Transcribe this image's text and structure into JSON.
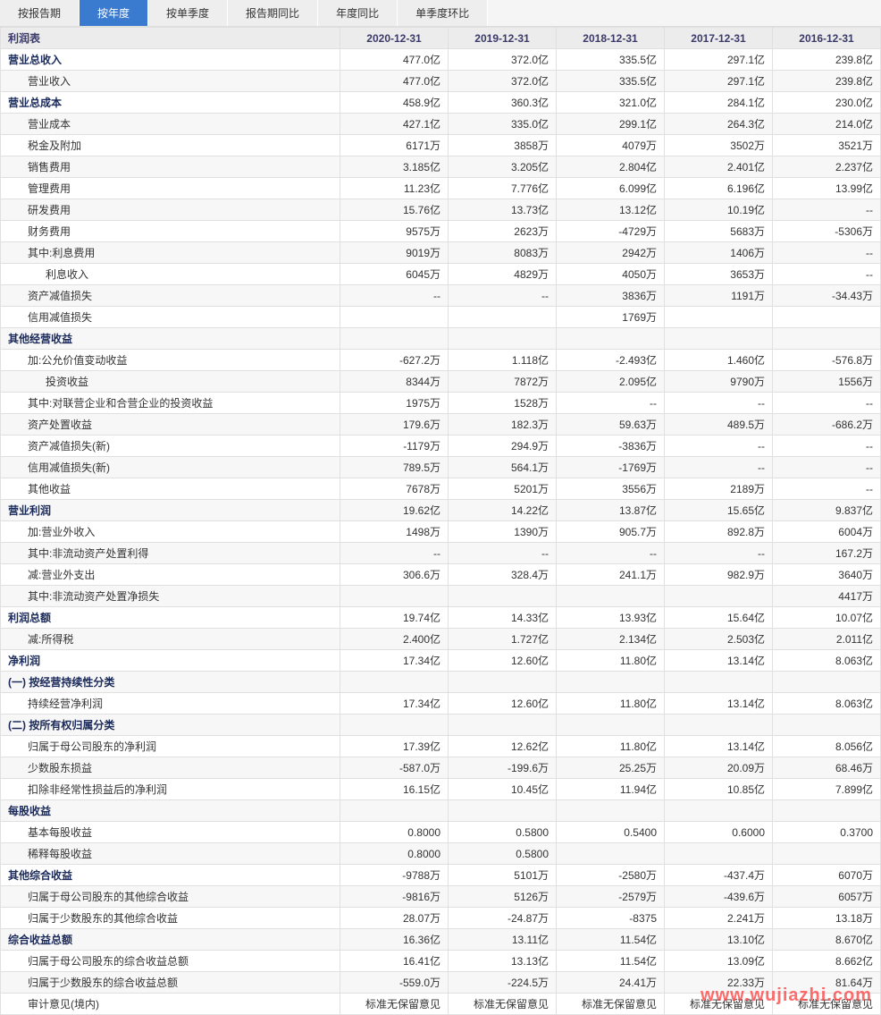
{
  "tabs": [
    {
      "label": "按报告期",
      "active": false
    },
    {
      "label": "按年度",
      "active": true
    },
    {
      "label": "按单季度",
      "active": false
    },
    {
      "label": "报告期同比",
      "active": false
    },
    {
      "label": "年度同比",
      "active": false
    },
    {
      "label": "单季度环比",
      "active": false
    }
  ],
  "header": {
    "title": "利润表",
    "cols": [
      "2020-12-31",
      "2019-12-31",
      "2018-12-31",
      "2017-12-31",
      "2016-12-31"
    ]
  },
  "rows": [
    {
      "label": "营业总收入",
      "indent": 0,
      "section": true,
      "v": [
        "477.0亿",
        "372.0亿",
        "335.5亿",
        "297.1亿",
        "239.8亿"
      ]
    },
    {
      "label": "营业收入",
      "indent": 1,
      "v": [
        "477.0亿",
        "372.0亿",
        "335.5亿",
        "297.1亿",
        "239.8亿"
      ]
    },
    {
      "label": "营业总成本",
      "indent": 0,
      "section": true,
      "v": [
        "458.9亿",
        "360.3亿",
        "321.0亿",
        "284.1亿",
        "230.0亿"
      ]
    },
    {
      "label": "营业成本",
      "indent": 1,
      "v": [
        "427.1亿",
        "335.0亿",
        "299.1亿",
        "264.3亿",
        "214.0亿"
      ]
    },
    {
      "label": "税金及附加",
      "indent": 1,
      "v": [
        "6171万",
        "3858万",
        "4079万",
        "3502万",
        "3521万"
      ]
    },
    {
      "label": "销售费用",
      "indent": 1,
      "v": [
        "3.185亿",
        "3.205亿",
        "2.804亿",
        "2.401亿",
        "2.237亿"
      ]
    },
    {
      "label": "管理费用",
      "indent": 1,
      "v": [
        "11.23亿",
        "7.776亿",
        "6.099亿",
        "6.196亿",
        "13.99亿"
      ]
    },
    {
      "label": "研发费用",
      "indent": 1,
      "v": [
        "15.76亿",
        "13.73亿",
        "13.12亿",
        "10.19亿",
        "--"
      ]
    },
    {
      "label": "财务费用",
      "indent": 1,
      "v": [
        "9575万",
        "2623万",
        "-4729万",
        "5683万",
        "-5306万"
      ]
    },
    {
      "label": "其中:利息费用",
      "indent": 1,
      "v": [
        "9019万",
        "8083万",
        "2942万",
        "1406万",
        "--"
      ]
    },
    {
      "label": "利息收入",
      "indent": 2,
      "v": [
        "6045万",
        "4829万",
        "4050万",
        "3653万",
        "--"
      ]
    },
    {
      "label": "资产减值损失",
      "indent": 1,
      "v": [
        "--",
        "--",
        "3836万",
        "1191万",
        "-34.43万"
      ]
    },
    {
      "label": "信用减值损失",
      "indent": 1,
      "v": [
        "",
        "",
        "1769万",
        "",
        ""
      ]
    },
    {
      "label": "其他经营收益",
      "indent": 0,
      "section": true,
      "v": [
        "",
        "",
        "",
        "",
        ""
      ]
    },
    {
      "label": "加:公允价值变动收益",
      "indent": 1,
      "v": [
        "-627.2万",
        "1.118亿",
        "-2.493亿",
        "1.460亿",
        "-576.8万"
      ]
    },
    {
      "label": "投资收益",
      "indent": 2,
      "v": [
        "8344万",
        "7872万",
        "2.095亿",
        "9790万",
        "1556万"
      ]
    },
    {
      "label": "其中:对联营企业和合营企业的投资收益",
      "indent": 1,
      "v": [
        "1975万",
        "1528万",
        "--",
        "--",
        "--"
      ]
    },
    {
      "label": "资产处置收益",
      "indent": 1,
      "v": [
        "179.6万",
        "182.3万",
        "59.63万",
        "489.5万",
        "-686.2万"
      ]
    },
    {
      "label": "资产减值损失(新)",
      "indent": 1,
      "v": [
        "-1179万",
        "294.9万",
        "-3836万",
        "--",
        "--"
      ]
    },
    {
      "label": "信用减值损失(新)",
      "indent": 1,
      "v": [
        "789.5万",
        "564.1万",
        "-1769万",
        "--",
        "--"
      ]
    },
    {
      "label": "其他收益",
      "indent": 1,
      "v": [
        "7678万",
        "5201万",
        "3556万",
        "2189万",
        "--"
      ]
    },
    {
      "label": "营业利润",
      "indent": 0,
      "section": true,
      "v": [
        "19.62亿",
        "14.22亿",
        "13.87亿",
        "15.65亿",
        "9.837亿"
      ]
    },
    {
      "label": "加:营业外收入",
      "indent": 1,
      "v": [
        "1498万",
        "1390万",
        "905.7万",
        "892.8万",
        "6004万"
      ]
    },
    {
      "label": "其中:非流动资产处置利得",
      "indent": 1,
      "v": [
        "--",
        "--",
        "--",
        "--",
        "167.2万"
      ]
    },
    {
      "label": "减:营业外支出",
      "indent": 1,
      "v": [
        "306.6万",
        "328.4万",
        "241.1万",
        "982.9万",
        "3640万"
      ]
    },
    {
      "label": "其中:非流动资产处置净损失",
      "indent": 1,
      "v": [
        "",
        "",
        "",
        "",
        "4417万"
      ]
    },
    {
      "label": "利润总额",
      "indent": 0,
      "section": true,
      "v": [
        "19.74亿",
        "14.33亿",
        "13.93亿",
        "15.64亿",
        "10.07亿"
      ]
    },
    {
      "label": "减:所得税",
      "indent": 1,
      "v": [
        "2.400亿",
        "1.727亿",
        "2.134亿",
        "2.503亿",
        "2.011亿"
      ]
    },
    {
      "label": "净利润",
      "indent": 0,
      "section": true,
      "v": [
        "17.34亿",
        "12.60亿",
        "11.80亿",
        "13.14亿",
        "8.063亿"
      ]
    },
    {
      "label": "(一) 按经营持续性分类",
      "indent": 0,
      "section": true,
      "v": [
        "",
        "",
        "",
        "",
        ""
      ]
    },
    {
      "label": "持续经营净利润",
      "indent": 1,
      "v": [
        "17.34亿",
        "12.60亿",
        "11.80亿",
        "13.14亿",
        "8.063亿"
      ]
    },
    {
      "label": "(二) 按所有权归属分类",
      "indent": 0,
      "section": true,
      "v": [
        "",
        "",
        "",
        "",
        ""
      ]
    },
    {
      "label": "归属于母公司股东的净利润",
      "indent": 1,
      "v": [
        "17.39亿",
        "12.62亿",
        "11.80亿",
        "13.14亿",
        "8.056亿"
      ]
    },
    {
      "label": "少数股东损益",
      "indent": 1,
      "v": [
        "-587.0万",
        "-199.6万",
        "25.25万",
        "20.09万",
        "68.46万"
      ]
    },
    {
      "label": "扣除非经常性损益后的净利润",
      "indent": 1,
      "v": [
        "16.15亿",
        "10.45亿",
        "11.94亿",
        "10.85亿",
        "7.899亿"
      ]
    },
    {
      "label": "每股收益",
      "indent": 0,
      "section": true,
      "v": [
        "",
        "",
        "",
        "",
        ""
      ]
    },
    {
      "label": "基本每股收益",
      "indent": 1,
      "v": [
        "0.8000",
        "0.5800",
        "0.5400",
        "0.6000",
        "0.3700"
      ]
    },
    {
      "label": "稀释每股收益",
      "indent": 1,
      "v": [
        "0.8000",
        "0.5800",
        "",
        "",
        ""
      ]
    },
    {
      "label": "其他综合收益",
      "indent": 0,
      "section": true,
      "v": [
        "-9788万",
        "5101万",
        "-2580万",
        "-437.4万",
        "6070万"
      ]
    },
    {
      "label": "归属于母公司股东的其他综合收益",
      "indent": 1,
      "v": [
        "-9816万",
        "5126万",
        "-2579万",
        "-439.6万",
        "6057万"
      ]
    },
    {
      "label": "归属于少数股东的其他综合收益",
      "indent": 1,
      "v": [
        "28.07万",
        "-24.87万",
        "-8375",
        "2.241万",
        "13.18万"
      ]
    },
    {
      "label": "综合收益总额",
      "indent": 0,
      "section": true,
      "v": [
        "16.36亿",
        "13.11亿",
        "11.54亿",
        "13.10亿",
        "8.670亿"
      ]
    },
    {
      "label": "归属于母公司股东的综合收益总额",
      "indent": 1,
      "v": [
        "16.41亿",
        "13.13亿",
        "11.54亿",
        "13.09亿",
        "8.662亿"
      ]
    },
    {
      "label": "归属于少数股东的综合收益总额",
      "indent": 1,
      "v": [
        "-559.0万",
        "-224.5万",
        "24.41万",
        "22.33万",
        "81.64万"
      ]
    },
    {
      "label": "审计意见(境内)",
      "indent": 1,
      "v": [
        "标准无保留意见",
        "标准无保留意见",
        "标准无保留意见",
        "标准无保留意见",
        "标准无保留意见"
      ]
    }
  ],
  "watermark": "www.wujiazhi.com",
  "colors": {
    "tab_active_bg": "#3b7bcf",
    "tab_bg": "#eeeeee",
    "header_bg": "#ececec",
    "border": "#e0e0e0",
    "row_alt": "#f7f7f7",
    "section_text": "#1a2a5a",
    "watermark": "#ff3b3b"
  }
}
